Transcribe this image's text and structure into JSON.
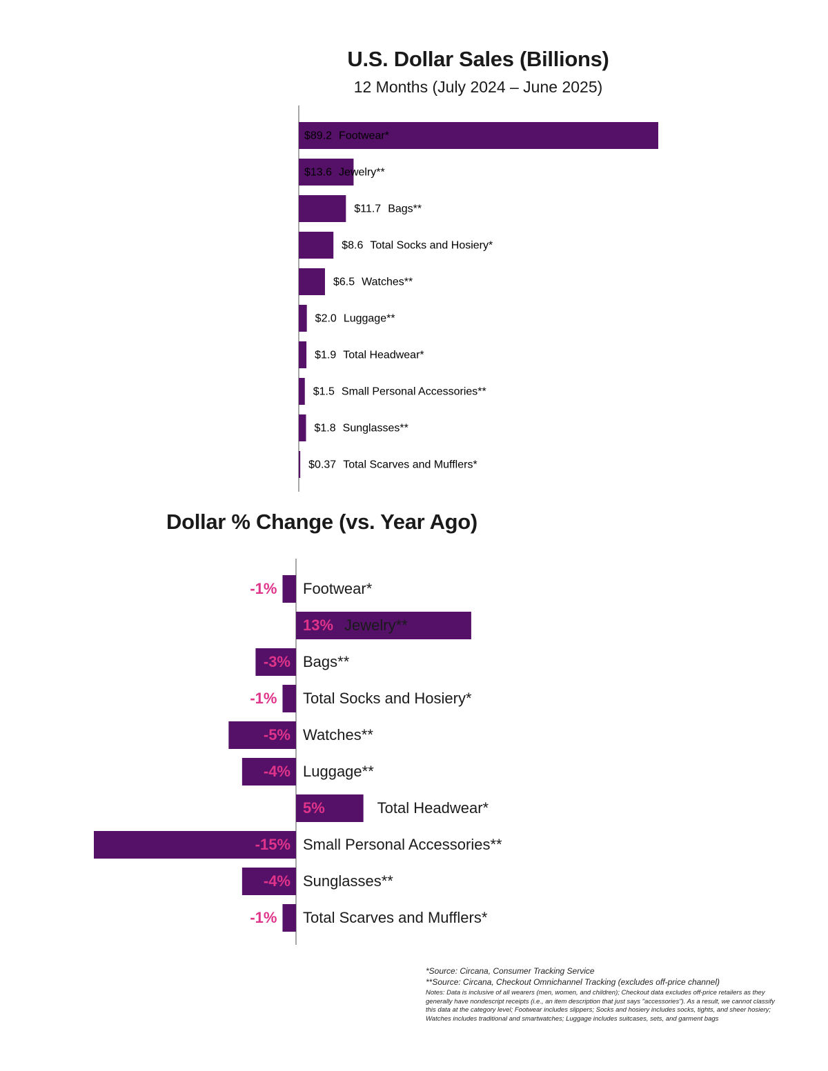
{
  "colors": {
    "bar": "#541167",
    "value": "#e0338a",
    "axis": "#8a8a8a",
    "text": "#1a1a1a"
  },
  "chart_data": [
    {
      "type": "bar",
      "orientation": "horizontal",
      "title": "U.S. Dollar Sales (Billions)",
      "subtitle": "12 Months (July 2024 – June 2025)",
      "categories": [
        "Footwear*",
        "Jewelry**",
        "Bags**",
        "Total Socks and Hosiery*",
        "Watches**",
        "Luggage**",
        "Total Headwear*",
        "Small Personal Accessories**",
        "Sunglasses**",
        "Total Scarves and Mufflers*"
      ],
      "values": [
        89.2,
        13.6,
        11.7,
        8.6,
        6.5,
        2.0,
        1.9,
        1.5,
        1.8,
        0.37
      ],
      "value_labels": [
        "$89.2",
        "$13.6",
        "$11.7",
        "$8.6",
        "$6.5",
        "$2.0",
        "$1.9",
        "$1.5",
        "$1.8",
        "$0.37"
      ],
      "xlim": [
        0,
        90
      ],
      "grid": false
    },
    {
      "type": "bar",
      "orientation": "horizontal",
      "title": "Dollar % Change (vs. Year Ago)",
      "categories": [
        "Footwear*",
        "Jewelry**",
        "Bags**",
        "Total Socks and Hosiery*",
        "Watches**",
        "Luggage**",
        "Total Headwear*",
        "Small Personal Accessories**",
        "Sunglasses**",
        "Total Scarves and Mufflers*"
      ],
      "values": [
        -1,
        13,
        -3,
        -1,
        -5,
        -4,
        5,
        -15,
        -4,
        -1
      ],
      "value_labels": [
        "-1%",
        "13%",
        "-3%",
        "-1%",
        "-5%",
        "-4%",
        "5%",
        "-15%",
        "-4%",
        "-1%"
      ],
      "xlim": [
        -15,
        13
      ],
      "grid": false
    }
  ],
  "notes": {
    "source1": "*Source: Circana, Consumer Tracking Service",
    "source2": "**Source: Circana, Checkout Omnichannel Tracking (excludes off-price channel)",
    "text": "Notes: Data is inclusive of all wearers (men, women, and children); Checkout data excludes off-price retailers as they generally have nondescript receipts (i.e., an item description that just says \"accessories\"). As a result, we cannot classify this data at the category level; Footwear includes slippers; Socks and hosiery includes socks, tights, and sheer hosiery; Watches includes traditional and smartwatches; Luggage includes suitcases, sets, and garment bags"
  }
}
